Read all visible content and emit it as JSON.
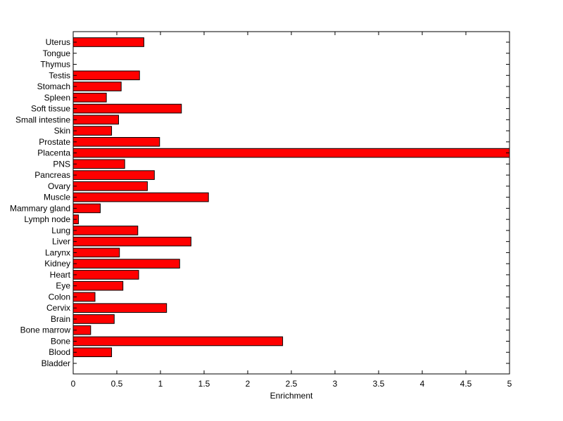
{
  "chart_data": {
    "type": "bar",
    "orientation": "horizontal",
    "xlabel": "Enrichment",
    "ylabel": "",
    "title": "",
    "xlim": [
      0,
      5
    ],
    "xticks": [
      0,
      0.5,
      1,
      1.5,
      2,
      2.5,
      3,
      3.5,
      4,
      4.5,
      5
    ],
    "xtick_labels": [
      "0",
      "0.5",
      "1",
      "1.5",
      "2",
      "2.5",
      "3",
      "3.5",
      "4",
      "4.5",
      "5"
    ],
    "categories": [
      "Bladder",
      "Blood",
      "Bone",
      "Bone marrow",
      "Brain",
      "Cervix",
      "Colon",
      "Eye",
      "Heart",
      "Kidney",
      "Larynx",
      "Liver",
      "Lung",
      "Lymph node",
      "Mammary gland",
      "Muscle",
      "Ovary",
      "Pancreas",
      "PNS",
      "Placenta",
      "Prostate",
      "Skin",
      "Small intestine",
      "Soft tissue",
      "Spleen",
      "Stomach",
      "Testis",
      "Thymus",
      "Tongue",
      "Uterus"
    ],
    "values": [
      0,
      0.44,
      2.4,
      0.2,
      0.47,
      1.07,
      0.25,
      0.57,
      0.75,
      1.22,
      0.53,
      1.35,
      0.74,
      0.06,
      0.31,
      1.55,
      0.85,
      0.93,
      0.59,
      5.0,
      0.99,
      0.44,
      0.52,
      1.24,
      0.38,
      0.55,
      0.76,
      0,
      0,
      0.81
    ],
    "bar_color": "#ff0000",
    "grid": false,
    "legend": false
  }
}
